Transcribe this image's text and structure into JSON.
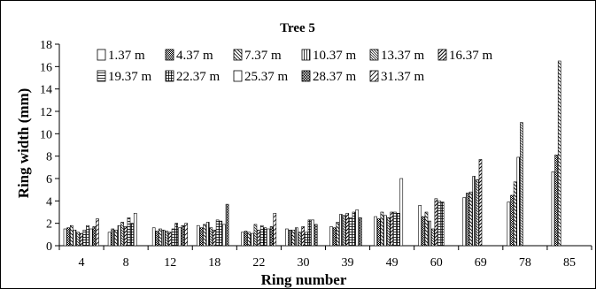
{
  "chart_data": {
    "type": "bar",
    "title": "Tree 5",
    "xlabel": "Ring number",
    "ylabel": "Ring width (mm)",
    "ylim": [
      0,
      18
    ],
    "yticks": [
      0,
      2,
      4,
      6,
      8,
      10,
      12,
      14,
      16,
      18
    ],
    "grid": false,
    "legend_position": "top",
    "categories": [
      "4",
      "8",
      "12",
      "18",
      "22",
      "30",
      "39",
      "49",
      "60",
      "69",
      "78",
      "85"
    ],
    "series": [
      {
        "name": "1.37 m",
        "pattern": "empty",
        "values": [
          1.5,
          1.2,
          1.6,
          1.8,
          1.2,
          1.5,
          1.7,
          2.6,
          3.6,
          4.3,
          3.9,
          6.6
        ]
      },
      {
        "name": "4.37 m",
        "pattern": "dense",
        "values": [
          1.6,
          1.5,
          1.3,
          1.6,
          1.3,
          1.4,
          1.6,
          2.4,
          2.6,
          4.7,
          4.5,
          8.1
        ]
      },
      {
        "name": "7.37 m",
        "pattern": "diag-back",
        "values": [
          1.8,
          1.4,
          1.5,
          1.9,
          1.2,
          1.4,
          2.1,
          3.0,
          3.0,
          4.8,
          5.7,
          16.5
        ]
      },
      {
        "name": "10.37 m",
        "pattern": "vert",
        "values": [
          1.4,
          1.8,
          1.4,
          2.1,
          1.1,
          1.6,
          2.8,
          2.7,
          2.2,
          6.2,
          7.9,
          null
        ]
      },
      {
        "name": "13.37 m",
        "pattern": "diag-back-dense",
        "values": [
          1.2,
          2.1,
          1.3,
          1.6,
          1.9,
          1.2,
          2.7,
          2.5,
          1.5,
          5.9,
          11.0,
          null
        ]
      },
      {
        "name": "16.37 m",
        "pattern": "diag-fwd",
        "values": [
          1.1,
          1.7,
          1.2,
          1.4,
          1.4,
          1.7,
          2.9,
          3.0,
          4.2,
          7.7,
          null,
          null
        ]
      },
      {
        "name": "19.37 m",
        "pattern": "horiz",
        "values": [
          1.4,
          2.5,
          1.5,
          2.3,
          1.8,
          1.2,
          2.5,
          3.0,
          4.0,
          null,
          null,
          null
        ]
      },
      {
        "name": "22.37 m",
        "pattern": "grid",
        "values": [
          1.8,
          2.0,
          2.0,
          2.2,
          1.6,
          2.3,
          3.0,
          2.9,
          3.9,
          null,
          null,
          null
        ]
      },
      {
        "name": "25.37 m",
        "pattern": "empty",
        "values": [
          1.5,
          2.9,
          1.6,
          1.9,
          1.5,
          2.3,
          3.2,
          6.0,
          null,
          null,
          null,
          null
        ]
      },
      {
        "name": "28.37 m",
        "pattern": "cross",
        "values": [
          1.7,
          null,
          1.8,
          3.7,
          1.7,
          1.9,
          2.5,
          null,
          null,
          null,
          null,
          null
        ]
      },
      {
        "name": "31.37 m",
        "pattern": "diag-fwd-wide",
        "values": [
          2.4,
          null,
          2.0,
          null,
          2.9,
          null,
          null,
          null,
          null,
          null,
          null,
          null
        ]
      }
    ]
  }
}
